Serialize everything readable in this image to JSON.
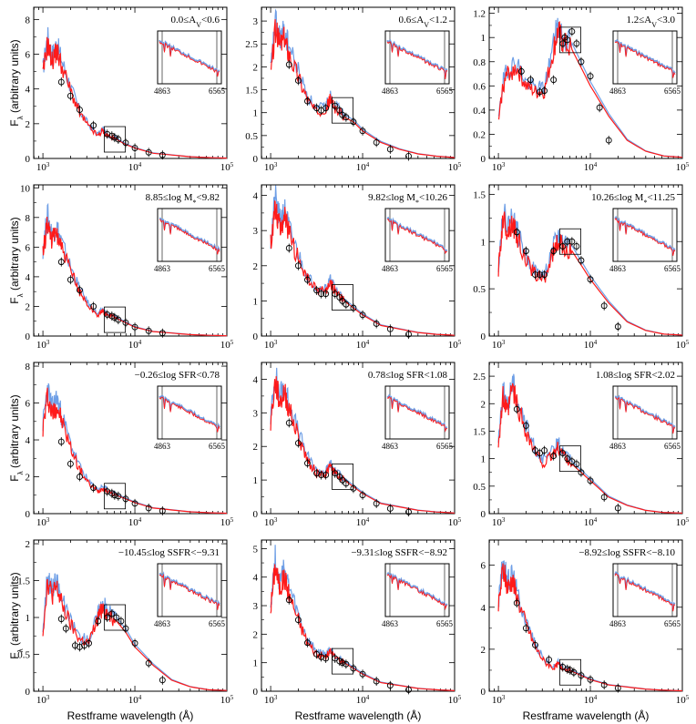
{
  "figure": {
    "xlabel": "Restframe wavelength (Å)",
    "ylabel": "F",
    "ylabel_sub": "λ",
    "ylabel_units": "(arbitrary units)",
    "x_ticks": [
      "10",
      "10",
      "10"
    ],
    "x_tick_exponents": [
      "3",
      "4",
      "5"
    ],
    "inset_ticks": [
      "4863",
      "6565"
    ],
    "colors": {
      "observed_model": "#ff1a1a",
      "comparison_model": "#6f9fe6",
      "points": "#000000"
    }
  },
  "chart_data": [
    {
      "type": "line",
      "row": 0,
      "col": 0,
      "title": "0.0≤A_V<0.6",
      "ylim": [
        0,
        8.7
      ],
      "yticks": [
        0,
        2,
        4,
        6,
        8
      ],
      "xlim_log": [
        2.9,
        5.0
      ],
      "series": [
        {
          "name": "red model",
          "x": [
            3.0,
            3.05,
            3.1,
            3.15,
            3.2,
            3.3,
            3.4,
            3.5,
            3.6,
            3.65,
            3.7,
            3.8,
            3.9,
            4.0,
            4.2,
            4.4,
            4.6,
            4.8,
            5.0
          ],
          "values": [
            4.8,
            6.6,
            5.6,
            6.2,
            5.4,
            3.9,
            2.6,
            1.8,
            1.3,
            1.6,
            1.3,
            1.1,
            0.8,
            0.6,
            0.3,
            0.2,
            0.1,
            0.05,
            0.02
          ]
        }
      ],
      "points": {
        "x": [
          3.2,
          3.3,
          3.4,
          3.55,
          3.7,
          3.75,
          3.78,
          3.82,
          3.9,
          4.0,
          4.15,
          4.3
        ],
        "y": [
          4.4,
          3.6,
          2.8,
          1.9,
          1.4,
          1.3,
          1.2,
          1.1,
          0.9,
          0.6,
          0.35,
          0.2
        ]
      }
    },
    {
      "type": "line",
      "row": 0,
      "col": 1,
      "title": "0.6≤A_V<1.2",
      "ylim": [
        0,
        3.3
      ],
      "yticks": [
        0,
        0.5,
        1,
        1.5,
        2,
        2.5,
        3
      ],
      "xlim_log": [
        2.9,
        5.0
      ],
      "series": [
        {
          "name": "red model",
          "x": [
            3.0,
            3.05,
            3.1,
            3.15,
            3.2,
            3.3,
            3.4,
            3.5,
            3.6,
            3.65,
            3.7,
            3.8,
            3.9,
            4.0,
            4.2,
            4.4,
            4.6,
            4.8,
            5.0
          ],
          "values": [
            1.8,
            2.8,
            2.5,
            2.6,
            2.3,
            1.8,
            1.3,
            1.0,
            1.1,
            1.3,
            1.1,
            0.9,
            0.8,
            0.6,
            0.35,
            0.2,
            0.1,
            0.05,
            0.02
          ]
        }
      ],
      "points": {
        "x": [
          3.2,
          3.3,
          3.4,
          3.5,
          3.55,
          3.6,
          3.7,
          3.75,
          3.78,
          3.82,
          3.9,
          4.0,
          4.15,
          4.3,
          4.5
        ],
        "y": [
          2.05,
          1.7,
          1.25,
          1.1,
          1.05,
          1.1,
          1.15,
          1.05,
          0.95,
          0.9,
          0.8,
          0.6,
          0.35,
          0.2,
          0.05
        ]
      }
    },
    {
      "type": "line",
      "row": 0,
      "col": 2,
      "title": "1.2≤A_V<3.0",
      "ylim": [
        0,
        1.25
      ],
      "yticks": [
        0,
        0.2,
        0.4,
        0.6,
        0.8,
        1,
        1.2
      ],
      "xlim_log": [
        2.9,
        5.0
      ],
      "series": [
        {
          "name": "red model",
          "x": [
            3.0,
            3.05,
            3.1,
            3.2,
            3.3,
            3.4,
            3.5,
            3.6,
            3.65,
            3.7,
            3.8,
            3.9,
            4.0,
            4.2,
            4.4,
            4.6,
            4.8,
            5.0
          ],
          "values": [
            0.3,
            0.6,
            0.7,
            0.75,
            0.6,
            0.55,
            0.55,
            0.9,
            1.05,
            0.95,
            0.9,
            0.75,
            0.6,
            0.35,
            0.15,
            0.06,
            0.02,
            0.01
          ]
        }
      ],
      "points": {
        "x": [
          3.25,
          3.35,
          3.45,
          3.5,
          3.6,
          3.7,
          3.72,
          3.75,
          3.8,
          3.85,
          3.9,
          4.0,
          4.1,
          4.2
        ],
        "y": [
          0.72,
          0.65,
          0.55,
          0.56,
          0.65,
          0.95,
          1.0,
          0.98,
          1.05,
          0.95,
          0.8,
          0.68,
          0.42,
          0.15
        ]
      }
    },
    {
      "type": "line",
      "row": 1,
      "col": 0,
      "title": "8.85≤log M*<9.82",
      "ylim": [
        0,
        10.2
      ],
      "yticks": [
        0,
        2,
        4,
        6,
        8,
        10
      ],
      "xlim_log": [
        2.9,
        5.0
      ],
      "series": [
        {
          "name": "red model",
          "x": [
            3.0,
            3.05,
            3.1,
            3.15,
            3.2,
            3.3,
            3.4,
            3.5,
            3.6,
            3.65,
            3.7,
            3.8,
            3.9,
            4.0,
            4.2,
            4.4,
            4.6,
            4.8,
            5.0
          ],
          "values": [
            5.5,
            7.7,
            6.4,
            7.0,
            6.0,
            4.4,
            3.0,
            2.0,
            1.4,
            1.7,
            1.4,
            1.2,
            0.9,
            0.6,
            0.3,
            0.2,
            0.1,
            0.05,
            0.02
          ]
        }
      ],
      "points": {
        "x": [
          3.2,
          3.3,
          3.4,
          3.55,
          3.7,
          3.75,
          3.78,
          3.82,
          3.9,
          4.0,
          4.15,
          4.3
        ],
        "y": [
          5.0,
          3.8,
          3.1,
          2.0,
          1.45,
          1.35,
          1.25,
          1.1,
          0.9,
          0.6,
          0.35,
          0.2
        ]
      }
    },
    {
      "type": "line",
      "row": 1,
      "col": 1,
      "title": "9.82≤log M*<10.26",
      "ylim": [
        0,
        4.3
      ],
      "yticks": [
        0,
        1,
        2,
        3,
        4
      ],
      "xlim_log": [
        2.9,
        5.0
      ],
      "series": [
        {
          "name": "red model",
          "x": [
            3.0,
            3.05,
            3.1,
            3.15,
            3.2,
            3.3,
            3.4,
            3.5,
            3.6,
            3.65,
            3.7,
            3.8,
            3.9,
            4.0,
            4.2,
            4.4,
            4.6,
            4.8,
            5.0
          ],
          "values": [
            2.6,
            3.7,
            3.1,
            3.4,
            2.9,
            2.2,
            1.6,
            1.3,
            1.3,
            1.5,
            1.3,
            1.0,
            0.8,
            0.6,
            0.3,
            0.2,
            0.1,
            0.05,
            0.02
          ]
        }
      ],
      "points": {
        "x": [
          3.2,
          3.3,
          3.4,
          3.5,
          3.55,
          3.6,
          3.7,
          3.75,
          3.78,
          3.82,
          3.9,
          4.0,
          4.15,
          4.3,
          4.5
        ],
        "y": [
          2.5,
          2.0,
          1.6,
          1.3,
          1.2,
          1.2,
          1.2,
          1.1,
          1.0,
          0.9,
          0.8,
          0.6,
          0.35,
          0.2,
          0.05
        ]
      }
    },
    {
      "type": "line",
      "row": 1,
      "col": 2,
      "title": "10.26≤log M*<11.25",
      "ylim": [
        0,
        1.6
      ],
      "yticks": [
        0,
        0.5,
        1,
        1.5
      ],
      "xlim_log": [
        2.9,
        5.0
      ],
      "series": [
        {
          "name": "red model",
          "x": [
            3.0,
            3.05,
            3.1,
            3.15,
            3.2,
            3.3,
            3.4,
            3.5,
            3.6,
            3.65,
            3.7,
            3.8,
            3.9,
            4.0,
            4.2,
            4.4,
            4.6,
            4.8,
            5.0
          ],
          "values": [
            0.7,
            1.25,
            1.1,
            1.2,
            1.05,
            0.8,
            0.65,
            0.6,
            0.9,
            1.0,
            0.95,
            0.9,
            0.75,
            0.6,
            0.35,
            0.15,
            0.06,
            0.02,
            0.01
          ]
        }
      ],
      "points": {
        "x": [
          3.2,
          3.3,
          3.4,
          3.45,
          3.5,
          3.6,
          3.7,
          3.75,
          3.8,
          3.85,
          3.9,
          4.0,
          4.15,
          4.3
        ],
        "y": [
          1.1,
          0.9,
          0.65,
          0.65,
          0.65,
          0.9,
          0.95,
          1.0,
          1.0,
          0.95,
          0.8,
          0.6,
          0.32,
          0.1
        ]
      }
    },
    {
      "type": "line",
      "row": 2,
      "col": 0,
      "title": "−0.26≤log SFR<0.78",
      "ylim": [
        0,
        8.2
      ],
      "yticks": [
        0,
        2,
        4,
        6,
        8
      ],
      "xlim_log": [
        2.9,
        5.0
      ],
      "series": [
        {
          "name": "red model",
          "x": [
            3.0,
            3.05,
            3.1,
            3.15,
            3.2,
            3.3,
            3.4,
            3.5,
            3.6,
            3.65,
            3.7,
            3.8,
            3.9,
            4.0,
            4.2,
            4.4,
            4.6,
            4.8,
            5.0
          ],
          "values": [
            4.6,
            6.4,
            5.4,
            5.9,
            5.1,
            3.6,
            2.4,
            1.6,
            1.2,
            1.4,
            1.2,
            1.0,
            0.8,
            0.6,
            0.3,
            0.2,
            0.1,
            0.05,
            0.02
          ]
        }
      ],
      "points": {
        "x": [
          3.2,
          3.3,
          3.4,
          3.55,
          3.7,
          3.75,
          3.78,
          3.82,
          3.9,
          4.0,
          4.15,
          4.3
        ],
        "y": [
          3.9,
          2.7,
          2.0,
          1.4,
          1.2,
          1.1,
          1.0,
          0.95,
          0.8,
          0.55,
          0.3,
          0.15
        ]
      }
    },
    {
      "type": "line",
      "row": 2,
      "col": 1,
      "title": "0.78≤log SFR<1.08",
      "ylim": [
        0,
        4.5
      ],
      "yticks": [
        0,
        1,
        2,
        3,
        4
      ],
      "xlim_log": [
        2.9,
        5.0
      ],
      "series": [
        {
          "name": "red model",
          "x": [
            3.0,
            3.05,
            3.1,
            3.15,
            3.2,
            3.3,
            3.4,
            3.5,
            3.6,
            3.65,
            3.7,
            3.8,
            3.9,
            4.0,
            4.2,
            4.4,
            4.6,
            4.8,
            5.0
          ],
          "values": [
            2.7,
            3.9,
            3.3,
            3.6,
            3.1,
            2.3,
            1.6,
            1.2,
            1.2,
            1.4,
            1.2,
            1.0,
            0.8,
            0.6,
            0.3,
            0.2,
            0.1,
            0.05,
            0.02
          ]
        }
      ],
      "points": {
        "x": [
          3.2,
          3.3,
          3.4,
          3.5,
          3.55,
          3.6,
          3.7,
          3.75,
          3.78,
          3.82,
          3.9,
          4.0,
          4.15,
          4.3,
          4.5
        ],
        "y": [
          2.7,
          2.1,
          1.5,
          1.2,
          1.15,
          1.15,
          1.2,
          1.1,
          1.0,
          0.9,
          0.75,
          0.55,
          0.3,
          0.15,
          0.05
        ]
      }
    },
    {
      "type": "line",
      "row": 2,
      "col": 2,
      "title": "1.08≤log SFR<2.02",
      "ylim": [
        0,
        2.75
      ],
      "yticks": [
        0,
        0.5,
        1,
        1.5,
        2,
        2.5
      ],
      "xlim_log": [
        2.9,
        5.0
      ],
      "series": [
        {
          "name": "red model",
          "x": [
            3.0,
            3.05,
            3.1,
            3.15,
            3.2,
            3.3,
            3.4,
            3.5,
            3.6,
            3.65,
            3.7,
            3.8,
            3.9,
            4.0,
            4.2,
            4.4,
            4.6,
            4.8,
            5.0
          ],
          "values": [
            1.3,
            2.1,
            1.8,
            2.3,
            2.0,
            1.5,
            1.1,
            0.9,
            1.1,
            1.2,
            1.1,
            0.9,
            0.75,
            0.6,
            0.3,
            0.15,
            0.06,
            0.02,
            0.01
          ]
        }
      ],
      "points": {
        "x": [
          3.2,
          3.3,
          3.4,
          3.45,
          3.5,
          3.6,
          3.7,
          3.75,
          3.8,
          3.85,
          3.9,
          4.0,
          4.15,
          4.3
        ],
        "y": [
          1.9,
          1.6,
          1.15,
          1.1,
          1.15,
          1.05,
          1.1,
          1.0,
          0.95,
          0.9,
          0.75,
          0.6,
          0.3,
          0.1
        ]
      }
    },
    {
      "type": "line",
      "row": 3,
      "col": 0,
      "title": "−10.45≤log SSFR<−9.31",
      "ylim": [
        0,
        2.05
      ],
      "yticks": [
        0,
        0.5,
        1,
        1.5,
        2
      ],
      "xlim_log": [
        2.9,
        5.0
      ],
      "series": [
        {
          "name": "red model",
          "x": [
            3.0,
            3.05,
            3.1,
            3.15,
            3.2,
            3.3,
            3.4,
            3.5,
            3.6,
            3.65,
            3.7,
            3.8,
            3.9,
            4.0,
            4.2,
            4.4,
            4.6,
            4.8,
            5.0
          ],
          "values": [
            0.8,
            1.5,
            1.3,
            1.4,
            1.2,
            0.9,
            0.7,
            0.65,
            1.0,
            1.15,
            1.05,
            0.95,
            0.8,
            0.6,
            0.35,
            0.15,
            0.06,
            0.02,
            0.01
          ]
        }
      ],
      "points": {
        "x": [
          3.2,
          3.25,
          3.35,
          3.4,
          3.45,
          3.5,
          3.6,
          3.7,
          3.75,
          3.8,
          3.85,
          3.9,
          4.0,
          4.15,
          4.3
        ],
        "y": [
          0.98,
          0.85,
          0.62,
          0.6,
          0.62,
          0.65,
          0.95,
          1.0,
          1.05,
          1.0,
          0.95,
          0.85,
          0.65,
          0.38,
          0.15
        ]
      }
    },
    {
      "type": "line",
      "row": 3,
      "col": 1,
      "title": "−9.31≤log SSFR<−8.92",
      "ylim": [
        0,
        5.3
      ],
      "yticks": [
        0,
        1,
        2,
        3,
        4,
        5
      ],
      "xlim_log": [
        2.9,
        5.0
      ],
      "series": [
        {
          "name": "red model",
          "x": [
            3.0,
            3.05,
            3.1,
            3.15,
            3.2,
            3.3,
            3.4,
            3.5,
            3.6,
            3.65,
            3.7,
            3.8,
            3.9,
            4.0,
            4.2,
            4.4,
            4.6,
            4.8,
            5.0
          ],
          "values": [
            2.9,
            4.4,
            3.6,
            4.0,
            3.4,
            2.5,
            1.7,
            1.3,
            1.2,
            1.4,
            1.2,
            1.0,
            0.8,
            0.6,
            0.3,
            0.2,
            0.1,
            0.05,
            0.02
          ]
        }
      ],
      "points": {
        "x": [
          3.2,
          3.3,
          3.4,
          3.5,
          3.55,
          3.6,
          3.7,
          3.75,
          3.78,
          3.82,
          3.9,
          4.0,
          4.15,
          4.3,
          4.5
        ],
        "y": [
          3.2,
          2.5,
          1.7,
          1.3,
          1.2,
          1.15,
          1.15,
          1.05,
          1.0,
          0.95,
          0.8,
          0.6,
          0.35,
          0.2,
          0.05
        ]
      }
    },
    {
      "type": "line",
      "row": 3,
      "col": 2,
      "title": "−8.92≤log SSFR<−8.10",
      "ylim": [
        0,
        7.2
      ],
      "yticks": [
        0,
        2,
        4,
        6
      ],
      "xlim_log": [
        2.9,
        5.0
      ],
      "series": [
        {
          "name": "red model",
          "x": [
            3.0,
            3.05,
            3.1,
            3.15,
            3.2,
            3.3,
            3.4,
            3.5,
            3.6,
            3.65,
            3.7,
            3.8,
            3.9,
            4.0,
            4.2,
            4.4,
            4.6,
            4.8,
            5.0
          ],
          "values": [
            4.0,
            5.8,
            4.9,
            5.3,
            4.5,
            3.2,
            2.1,
            1.4,
            1.1,
            1.3,
            1.1,
            0.95,
            0.75,
            0.55,
            0.3,
            0.2,
            0.1,
            0.05,
            0.02
          ]
        }
      ],
      "points": {
        "x": [
          3.2,
          3.3,
          3.4,
          3.55,
          3.7,
          3.75,
          3.78,
          3.82,
          3.9,
          4.0,
          4.15,
          4.3
        ],
        "y": [
          4.2,
          3.0,
          2.2,
          1.5,
          1.15,
          1.05,
          1.0,
          0.9,
          0.75,
          0.55,
          0.3,
          0.15
        ]
      }
    }
  ]
}
